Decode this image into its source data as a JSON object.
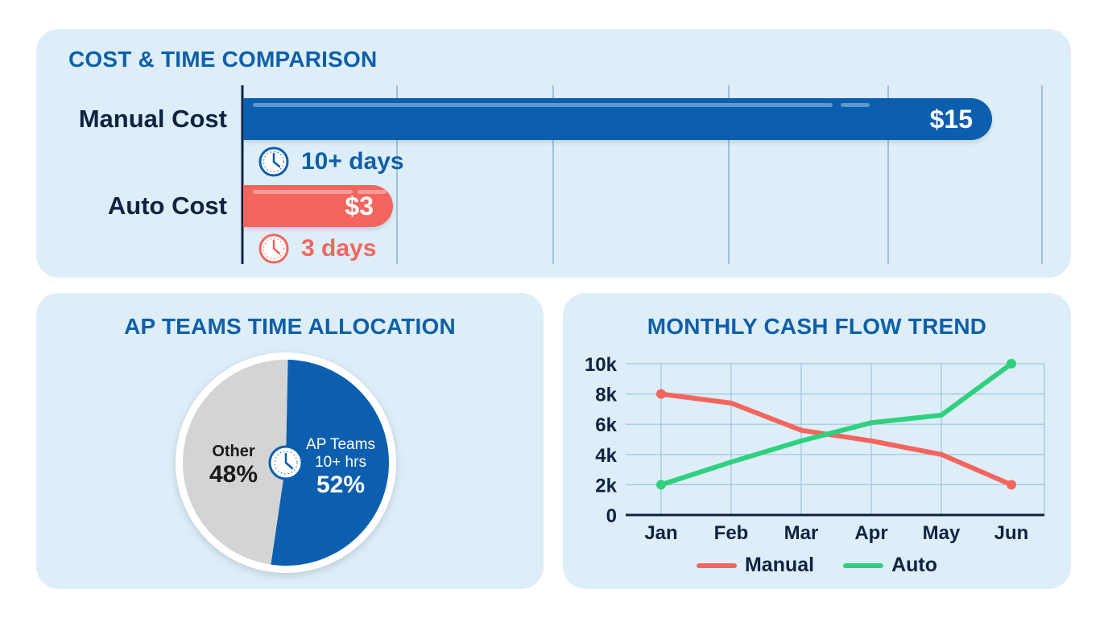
{
  "cost_time": {
    "title": "COST & TIME COMPARISON",
    "rows": [
      {
        "label": "Manual Cost",
        "value_label": "$15",
        "time": "10+ days"
      },
      {
        "label": "Auto Cost",
        "value_label": "$3",
        "time": "3 days"
      }
    ]
  },
  "pie": {
    "title": "AP TEAMS TIME ALLOCATION",
    "other_label": "Other",
    "other_pct": "48%",
    "ap_label": "AP Teams",
    "ap_sub": "10+ hrs",
    "ap_pct": "52%"
  },
  "line": {
    "title": "MONTHLY CASH FLOW TREND",
    "legend": [
      "Manual",
      "Auto"
    ]
  },
  "colors": {
    "blue": "#0b5fae",
    "red": "#f4655e",
    "green": "#2fd07e",
    "gray": "#d4d4d4",
    "navy": "#0f2340",
    "title": "#0f5fa8"
  },
  "chart_data": [
    {
      "type": "bar",
      "title": "COST & TIME COMPARISON",
      "orientation": "horizontal",
      "categories": [
        "Manual Cost",
        "Auto Cost"
      ],
      "values": [
        15,
        3
      ],
      "value_labels": [
        "$15",
        "$3"
      ],
      "annotations": [
        "10+ days",
        "3 days"
      ],
      "xlim": [
        0,
        15
      ]
    },
    {
      "type": "pie",
      "title": "AP TEAMS TIME ALLOCATION",
      "labels": [
        "AP Teams",
        "Other"
      ],
      "values": [
        52,
        48
      ]
    },
    {
      "type": "line",
      "title": "MONTHLY CASH FLOW TREND",
      "x": [
        "Jan",
        "Feb",
        "Mar",
        "Apr",
        "May",
        "Jun"
      ],
      "y_ticks": [
        "0",
        "2k",
        "4k",
        "6k",
        "8k",
        "10k"
      ],
      "ylim": [
        0,
        10000
      ],
      "grid": true,
      "legend_position": "bottom",
      "series": [
        {
          "name": "Manual",
          "values": [
            8000,
            7400,
            5600,
            4900,
            4000,
            2000
          ]
        },
        {
          "name": "Auto",
          "values": [
            2000,
            3500,
            4900,
            6100,
            6600,
            10000
          ]
        }
      ]
    }
  ]
}
